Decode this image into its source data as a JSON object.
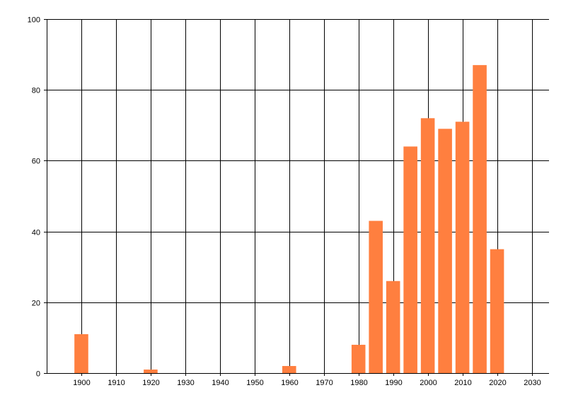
{
  "chart_data": {
    "type": "bar",
    "title": "",
    "xlabel": "",
    "ylabel": "",
    "xlim": [
      1890,
      2035
    ],
    "ylim": [
      0,
      100
    ],
    "grid": true,
    "x_ticks": [
      1900,
      1910,
      1920,
      1930,
      1940,
      1950,
      1960,
      1970,
      1980,
      1990,
      2000,
      2010,
      2020,
      2030
    ],
    "y_ticks": [
      0,
      20,
      40,
      60,
      80,
      100
    ],
    "x_tick_labels": [
      "1900",
      "1910",
      "1920",
      "1930",
      "1940",
      "1950",
      "1960",
      "1970",
      "1980",
      "1990",
      "2000",
      "2010",
      "2020",
      "2030"
    ],
    "y_tick_labels": [
      "0",
      "20",
      "40",
      "60",
      "80",
      "100"
    ],
    "bar_color": "#ff7f3f",
    "bar_width_years": 4,
    "x": [
      1900,
      1920,
      1960,
      1980,
      1985,
      1990,
      1995,
      2000,
      2005,
      2010,
      2015,
      2020
    ],
    "values": [
      11,
      1,
      2,
      8,
      43,
      26,
      64,
      72,
      69,
      71,
      87,
      35
    ]
  }
}
